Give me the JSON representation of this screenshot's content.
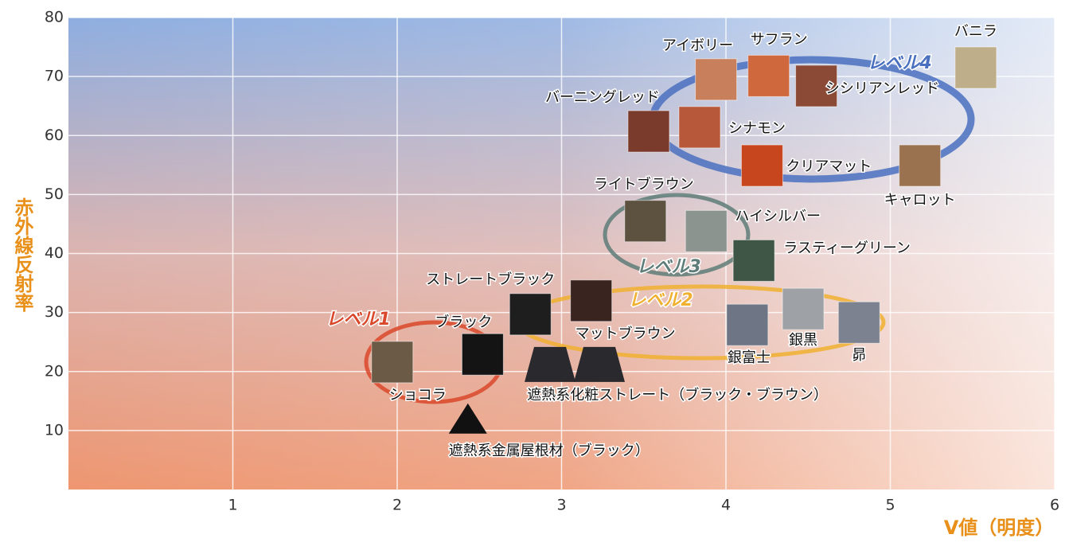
{
  "chart_data": {
    "type": "scatter",
    "x_label": "V値（明度）",
    "y_label": "赤外線反射率",
    "xlim": [
      0,
      6
    ],
    "ylim": [
      0,
      80
    ],
    "xticks": [
      1,
      2,
      3,
      4,
      5,
      6
    ],
    "yticks": [
      10,
      20,
      30,
      40,
      50,
      60,
      70,
      80
    ],
    "grid": true,
    "series": [
      {
        "name": "ショコラ",
        "marker": "tile",
        "color": "#6b5a45",
        "x": [
          1.97
        ],
        "values": [
          21.6
        ]
      },
      {
        "name": "ブラック",
        "marker": "tile",
        "color": "#141414",
        "x": [
          2.52
        ],
        "values": [
          22.9
        ]
      },
      {
        "name": "ストレートブラック",
        "marker": "tile",
        "color": "#1e1e1e",
        "x": [
          2.81
        ],
        "values": [
          29.7
        ]
      },
      {
        "name": "マットブラウン",
        "marker": "tile",
        "color": "#3a2420",
        "x": [
          3.18
        ],
        "values": [
          32
        ]
      },
      {
        "name": "ライトブラウン",
        "marker": "tile",
        "color": "#5d5140",
        "x": [
          3.51
        ],
        "values": [
          45.5
        ]
      },
      {
        "name": "ハイシルバー",
        "marker": "tile",
        "color": "#8c9490",
        "x": [
          3.88
        ],
        "values": [
          43.8
        ]
      },
      {
        "name": "ラスティーグリーン",
        "marker": "tile",
        "color": "#3f5646",
        "x": [
          4.17
        ],
        "values": [
          38.8
        ]
      },
      {
        "name": "銀富士",
        "marker": "tile",
        "color": "#6e7584",
        "x": [
          4.13
        ],
        "values": [
          27.9
        ]
      },
      {
        "name": "銀黒",
        "marker": "tile",
        "color": "#9ea2a6",
        "x": [
          4.47
        ],
        "values": [
          30.6
        ]
      },
      {
        "name": "昴",
        "marker": "tile",
        "color": "#7d8290",
        "x": [
          4.81
        ],
        "values": [
          28.3
        ]
      },
      {
        "name": "アイボリー",
        "marker": "tile",
        "color": "#c8805c",
        "x": [
          3.94
        ],
        "values": [
          69.5
        ]
      },
      {
        "name": "サフラン",
        "marker": "tile",
        "color": "#d0683e",
        "x": [
          4.26
        ],
        "values": [
          70.1
        ]
      },
      {
        "name": "シシリアンレッド",
        "marker": "tile",
        "color": "#8a4a36",
        "x": [
          4.55
        ],
        "values": [
          68.4
        ]
      },
      {
        "name": "バーニングレッド",
        "marker": "tile",
        "color": "#7a3a2c",
        "x": [
          3.53
        ],
        "values": [
          60.7
        ]
      },
      {
        "name": "シナモン",
        "marker": "tile",
        "color": "#b8583a",
        "x": [
          3.84
        ],
        "values": [
          61.4
        ]
      },
      {
        "name": "クリアマット",
        "marker": "tile",
        "color": "#c8461e",
        "x": [
          4.22
        ],
        "values": [
          54.9
        ]
      },
      {
        "name": "キャロット",
        "marker": "tile",
        "color": "#9a7250",
        "x": [
          5.18
        ],
        "values": [
          54.9
        ]
      },
      {
        "name": "バニラ",
        "marker": "tile",
        "color": "#bfae8a",
        "x": [
          5.52
        ],
        "values": [
          71.5
        ]
      },
      {
        "name": "遮熱系化粧ストレート（ブラック・ブラウン）",
        "marker": "trapezoid",
        "color": "#2a2a2e",
        "x": [
          2.93,
          3.23
        ],
        "values": [
          21.2,
          21.2
        ]
      },
      {
        "name": "遮熱系金属屋根材（ブラック）",
        "marker": "triangle",
        "color": "#111111",
        "x": [
          2.43
        ],
        "values": [
          11.9
        ]
      }
    ],
    "levels": [
      {
        "label": "レベル1",
        "color": "#d9482a"
      },
      {
        "label": "レベル2",
        "color": "#f0b030"
      },
      {
        "label": "レベル3",
        "color": "#5e7c78"
      },
      {
        "label": "レベル4",
        "color": "#4a70c0"
      }
    ]
  }
}
